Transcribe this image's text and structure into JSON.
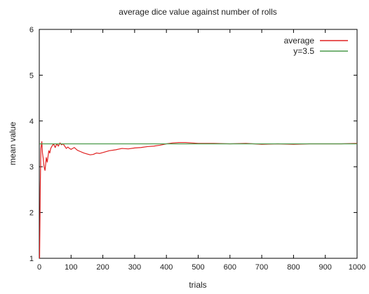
{
  "chart_data": {
    "type": "line",
    "title": "average dice value against number of rolls",
    "xlabel": "trials",
    "ylabel": "mean value",
    "xlim": [
      0,
      1000
    ],
    "ylim": [
      1,
      6
    ],
    "x_ticks": [
      0,
      100,
      200,
      300,
      400,
      500,
      600,
      700,
      800,
      900,
      1000
    ],
    "y_ticks": [
      1,
      2,
      3,
      4,
      5,
      6
    ],
    "grid": false,
    "legend_position": "top-right",
    "series": [
      {
        "name": "average",
        "color": "#e02020",
        "x": [
          1,
          3,
          5,
          8,
          10,
          12,
          15,
          18,
          20,
          22,
          25,
          28,
          30,
          33,
          36,
          40,
          45,
          50,
          55,
          60,
          65,
          70,
          75,
          80,
          85,
          90,
          95,
          100,
          110,
          120,
          130,
          140,
          150,
          160,
          170,
          180,
          190,
          200,
          220,
          240,
          260,
          280,
          300,
          320,
          340,
          360,
          380,
          400,
          420,
          440,
          460,
          480,
          500,
          550,
          600,
          650,
          700,
          750,
          800,
          850,
          900,
          950,
          1000
        ],
        "y": [
          1.0,
          2.5,
          3.4,
          3.55,
          3.3,
          3.2,
          3.0,
          2.92,
          3.05,
          3.2,
          3.1,
          3.25,
          3.35,
          3.3,
          3.4,
          3.45,
          3.5,
          3.42,
          3.5,
          3.45,
          3.52,
          3.48,
          3.5,
          3.45,
          3.4,
          3.43,
          3.4,
          3.38,
          3.42,
          3.36,
          3.33,
          3.3,
          3.28,
          3.26,
          3.27,
          3.3,
          3.29,
          3.31,
          3.35,
          3.37,
          3.4,
          3.39,
          3.41,
          3.42,
          3.44,
          3.45,
          3.47,
          3.5,
          3.52,
          3.53,
          3.53,
          3.52,
          3.51,
          3.51,
          3.5,
          3.51,
          3.49,
          3.5,
          3.49,
          3.5,
          3.5,
          3.5,
          3.51
        ]
      },
      {
        "name": "y=3.5",
        "color": "#4a9a4a",
        "x": [
          0,
          1000
        ],
        "y": [
          3.5,
          3.5
        ]
      }
    ]
  }
}
